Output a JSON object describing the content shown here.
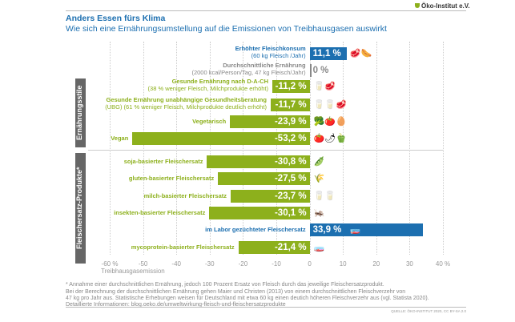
{
  "header": {
    "logo": "Öko-Institut e.V.",
    "title": "Anders Essen fürs Klima",
    "subtitle": "Wie sich eine Ernährungsumstellung auf die Emissionen von Treibhausgasen auswirkt"
  },
  "groups": [
    "Ernährungsstile",
    "Fleischersatz-Produkte*"
  ],
  "chart_data": {
    "type": "bar",
    "orientation": "horizontal",
    "xlabel": "Treibhausgasemission",
    "xlim": [
      -60,
      40
    ],
    "ticks": [
      "-60 %",
      "-50",
      "-40",
      "-30",
      "-20",
      "-10",
      "0",
      "10",
      "20",
      "30",
      "40 %"
    ],
    "tick_values": [
      -60,
      -50,
      -40,
      -30,
      -20,
      -10,
      0,
      10,
      20,
      30,
      40
    ],
    "colors": {
      "positive": "#1c6fb0",
      "negative": "#8db01c",
      "neutral": "#888888"
    },
    "rows": [
      {
        "label": "Erhöhter Fleischkonsum",
        "sub": "(60 kg Fleisch /Jahr)",
        "value": 11.1,
        "text": "11,1 %",
        "group": 0,
        "icons": "🥩🌭"
      },
      {
        "label": "Durchschnittliche Ernährung",
        "sub": "(2000 kcal/Person/Tag, 47 kg Fleisch/Jahr)",
        "value": 0,
        "text": "0 %",
        "group": 0,
        "icons": ""
      },
      {
        "label": "Gesunde Ernährung nach D-A-CH",
        "sub": "(38 % weniger Fleisch, Milchprodukte erhöht)",
        "value": -11.2,
        "text": "-11,2 %",
        "group": 0,
        "icons": "🥛🥩"
      },
      {
        "label": "Gesunde Ernährung unabhängige Gesundheitsberatung",
        "sub": "(UBG) (61 % weniger Fleisch, Milchprodukte deutlich erhöht)",
        "value": -11.7,
        "text": "-11,7 %",
        "group": 0,
        "icons": "🥛🥛🥩"
      },
      {
        "label": "Vegetarisch",
        "sub": "",
        "value": -23.9,
        "text": "-23,9 %",
        "group": 0,
        "icons": "🥦🍅🥚"
      },
      {
        "label": "Vegan",
        "sub": "",
        "value": -53.2,
        "text": "-53,2 %",
        "group": 0,
        "icons": "🍅🌶🫑"
      },
      {
        "label": "soja-basierter Fleischersatz",
        "sub": "",
        "value": -30.8,
        "text": "-30,8 %",
        "group": 1,
        "icons": "🫛"
      },
      {
        "label": "gluten-basierter Fleischersatz",
        "sub": "",
        "value": -27.5,
        "text": "-27,5 %",
        "group": 1,
        "icons": "🌾"
      },
      {
        "label": "milch-basierter Fleischersatz",
        "sub": "",
        "value": -23.7,
        "text": "-23,7 %",
        "group": 1,
        "icons": "🥛🥛"
      },
      {
        "label": "insekten-basierter Fleischersatz",
        "sub": "",
        "value": -30.1,
        "text": "-30,1 %",
        "group": 1,
        "icons": "🦗"
      },
      {
        "label": "im Labor gezüchteter Fleischersatz",
        "sub": "",
        "value": 33.9,
        "text": "33,9 %",
        "group": 1,
        "icons": "🧫"
      },
      {
        "label": "mycoprotein-basierter Fleischersatz",
        "sub": "",
        "value": -21.4,
        "text": "-21,4 %",
        "group": 1,
        "icons": "🧫"
      }
    ]
  },
  "footer": {
    "note1": "* Annahme einer durchschnittlichen Ernährung, jedoch 100 Prozent Ersatz von Fleisch durch das jeweilige Fleischersatzprodukt.",
    "note2": "Bei der Berechnung der durchschnittlichen Ernährung gehen Maier und Christen (2013) von einem durchschnittlichen Fleischverzehr von",
    "note3": "47 kg pro Jahr aus. Statistische Erhebungen weisen für Deutschland mit etwa 60 kg einen deutich höheren Fleischverzehr aus (vgl. Statista 2020).",
    "details_label": "Detaillierte Informationen:",
    "link": "blog.oeko.de/umweltwirkung-fleisch-und-fleischersatzprodukte",
    "source": "QUELLE: ÖKO-INSTITUT 2020, CC BY-SA 2.0"
  }
}
